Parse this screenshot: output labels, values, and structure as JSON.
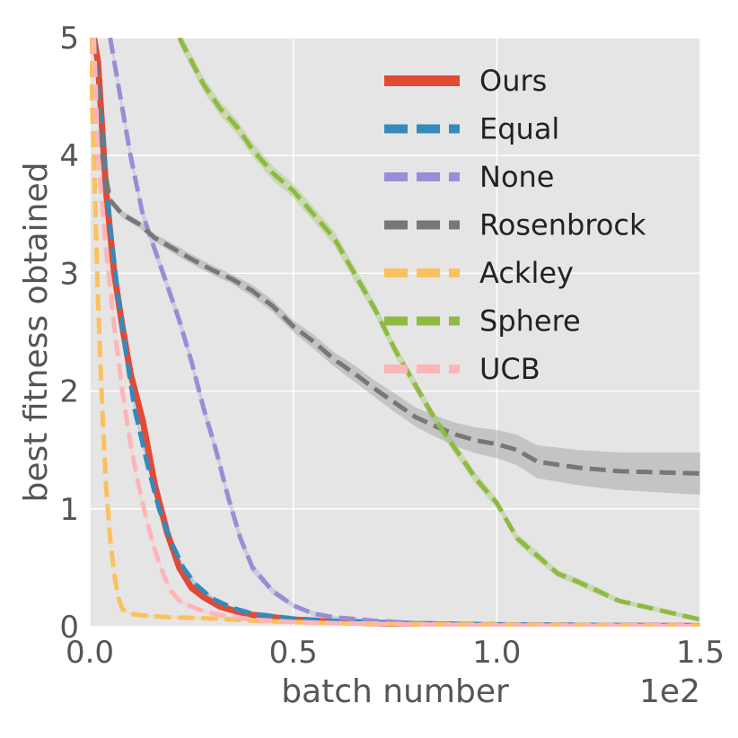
{
  "chart_data": {
    "type": "line",
    "xlabel": "batch number",
    "ylabel": "best fitness obtained",
    "x_scale_label": "1e2",
    "xlim": [
      0,
      150
    ],
    "ylim": [
      0,
      5
    ],
    "xticks": [
      0,
      50,
      100,
      150
    ],
    "xtick_labels": [
      "0.0",
      "0.5",
      "1.0",
      "1.5"
    ],
    "yticks": [
      0,
      1,
      2,
      3,
      4,
      5
    ],
    "ytick_labels": [
      "0",
      "1",
      "2",
      "3",
      "4",
      "5"
    ],
    "grid": true,
    "legend_position": "top-right",
    "series": [
      {
        "name": "Ours",
        "color": "#e24a33",
        "dash": "solid",
        "x": [
          1,
          2,
          4,
          6,
          8,
          10,
          13,
          16,
          19,
          22,
          25,
          28,
          32,
          36,
          40,
          45,
          50,
          60,
          70,
          80,
          100,
          120,
          150
        ],
        "y": [
          5.0,
          4.8,
          3.7,
          3.0,
          2.55,
          2.15,
          1.75,
          1.2,
          0.8,
          0.5,
          0.33,
          0.25,
          0.17,
          0.13,
          0.1,
          0.08,
          0.06,
          0.04,
          0.03,
          0.02,
          0.01,
          0.008,
          0.005
        ],
        "band": [
          0,
          0,
          0.03,
          0.03,
          0.03,
          0.03,
          0.03,
          0.03,
          0.03,
          0.03,
          0.02,
          0.02,
          0.02,
          0.02,
          0.01,
          0.01,
          0.01,
          0.01,
          0.01,
          0.01,
          0.01,
          0.01,
          0.01
        ]
      },
      {
        "name": "Equal",
        "color": "#348abd",
        "dash": "dashed",
        "x": [
          1,
          3,
          5,
          7,
          9,
          11,
          14,
          17,
          20,
          23,
          26,
          30,
          35,
          40,
          50,
          60,
          80,
          100,
          150
        ],
        "y": [
          5.0,
          4.2,
          3.4,
          2.8,
          2.3,
          1.85,
          1.4,
          1.0,
          0.72,
          0.5,
          0.36,
          0.24,
          0.16,
          0.11,
          0.07,
          0.05,
          0.03,
          0.02,
          0.01
        ],
        "band": [
          0,
          0.03,
          0.03,
          0.03,
          0.03,
          0.03,
          0.03,
          0.03,
          0.02,
          0.02,
          0.02,
          0.02,
          0.01,
          0.01,
          0.01,
          0.01,
          0.01,
          0.01,
          0.01
        ]
      },
      {
        "name": "None",
        "color": "#988ed5",
        "dash": "dashed",
        "x": [
          5,
          7,
          10,
          13,
          16,
          19,
          22,
          25,
          28,
          31,
          34,
          37,
          40,
          45,
          50,
          55,
          60,
          70,
          80,
          100,
          150
        ],
        "y": [
          5.0,
          4.6,
          4.0,
          3.5,
          3.2,
          2.9,
          2.6,
          2.25,
          1.85,
          1.5,
          1.1,
          0.75,
          0.5,
          0.3,
          0.18,
          0.11,
          0.08,
          0.05,
          0.03,
          0.02,
          0.01
        ],
        "band": [
          0.05,
          0.05,
          0.05,
          0.05,
          0.05,
          0.05,
          0.05,
          0.05,
          0.05,
          0.05,
          0.05,
          0.05,
          0.04,
          0.03,
          0.02,
          0.02,
          0.01,
          0.01,
          0.01,
          0.01,
          0.01
        ]
      },
      {
        "name": "Rosenbrock",
        "color": "#777777",
        "dash": "dashed",
        "x": [
          1,
          3,
          5,
          8,
          12,
          16,
          20,
          25,
          30,
          35,
          40,
          45,
          50,
          55,
          60,
          65,
          70,
          75,
          80,
          85,
          90,
          95,
          100,
          105,
          110,
          120,
          130,
          140,
          150
        ],
        "y": [
          5.0,
          4.0,
          3.62,
          3.5,
          3.42,
          3.3,
          3.22,
          3.12,
          3.03,
          2.95,
          2.85,
          2.72,
          2.55,
          2.42,
          2.27,
          2.15,
          2.02,
          1.9,
          1.78,
          1.7,
          1.63,
          1.58,
          1.55,
          1.5,
          1.4,
          1.35,
          1.32,
          1.31,
          1.3
        ],
        "band": [
          0.02,
          0.02,
          0.03,
          0.03,
          0.03,
          0.03,
          0.04,
          0.04,
          0.04,
          0.04,
          0.05,
          0.05,
          0.05,
          0.06,
          0.06,
          0.07,
          0.07,
          0.08,
          0.08,
          0.09,
          0.1,
          0.11,
          0.12,
          0.13,
          0.14,
          0.15,
          0.16,
          0.17,
          0.18
        ]
      },
      {
        "name": "Ackley",
        "color": "#fbc15e",
        "dash": "dashed",
        "x": [
          0,
          1,
          2,
          3,
          4,
          5,
          6,
          7,
          8,
          10,
          12,
          15,
          20,
          30,
          40,
          60,
          80,
          150
        ],
        "y": [
          5.0,
          4.0,
          2.8,
          1.9,
          1.2,
          0.75,
          0.45,
          0.25,
          0.15,
          0.11,
          0.1,
          0.09,
          0.08,
          0.07,
          0.05,
          0.03,
          0.02,
          0.01
        ],
        "band": [
          0.02,
          0.02,
          0.02,
          0.02,
          0.02,
          0.02,
          0.02,
          0.01,
          0.01,
          0.01,
          0.01,
          0.01,
          0.01,
          0.01,
          0.01,
          0.01,
          0.01,
          0.01
        ]
      },
      {
        "name": "Sphere",
        "color": "#8eba42",
        "dash": "dashed",
        "x": [
          22,
          25,
          28,
          32,
          36,
          40,
          45,
          50,
          55,
          60,
          65,
          70,
          75,
          80,
          85,
          90,
          95,
          100,
          105,
          110,
          115,
          120,
          125,
          130,
          135,
          140,
          145,
          150
        ],
        "y": [
          5.0,
          4.8,
          4.6,
          4.4,
          4.25,
          4.05,
          3.85,
          3.7,
          3.5,
          3.3,
          3.0,
          2.7,
          2.35,
          2.05,
          1.75,
          1.5,
          1.25,
          1.05,
          0.75,
          0.6,
          0.45,
          0.38,
          0.3,
          0.22,
          0.18,
          0.14,
          0.1,
          0.06
        ],
        "band": [
          0.06,
          0.06,
          0.06,
          0.06,
          0.06,
          0.06,
          0.06,
          0.06,
          0.06,
          0.06,
          0.06,
          0.05,
          0.05,
          0.05,
          0.05,
          0.05,
          0.05,
          0.04,
          0.04,
          0.04,
          0.03,
          0.03,
          0.03,
          0.02,
          0.02,
          0.02,
          0.02,
          0.02
        ]
      },
      {
        "name": "UCB",
        "color": "#ffb5b8",
        "dash": "dashed",
        "x": [
          1,
          2,
          4,
          6,
          8,
          10,
          12,
          14,
          16,
          18,
          20,
          22,
          25,
          28,
          32,
          36,
          40,
          50,
          60,
          80,
          100,
          150
        ],
        "y": [
          5.0,
          4.0,
          3.2,
          2.55,
          2.0,
          1.55,
          1.2,
          0.9,
          0.65,
          0.45,
          0.3,
          0.22,
          0.17,
          0.13,
          0.1,
          0.08,
          0.06,
          0.04,
          0.03,
          0.02,
          0.01,
          0.005
        ],
        "band": [
          0.03,
          0.03,
          0.03,
          0.03,
          0.03,
          0.03,
          0.03,
          0.03,
          0.02,
          0.02,
          0.02,
          0.02,
          0.01,
          0.01,
          0.01,
          0.01,
          0.01,
          0.01,
          0.01,
          0.01,
          0.01,
          0.01
        ]
      }
    ]
  }
}
